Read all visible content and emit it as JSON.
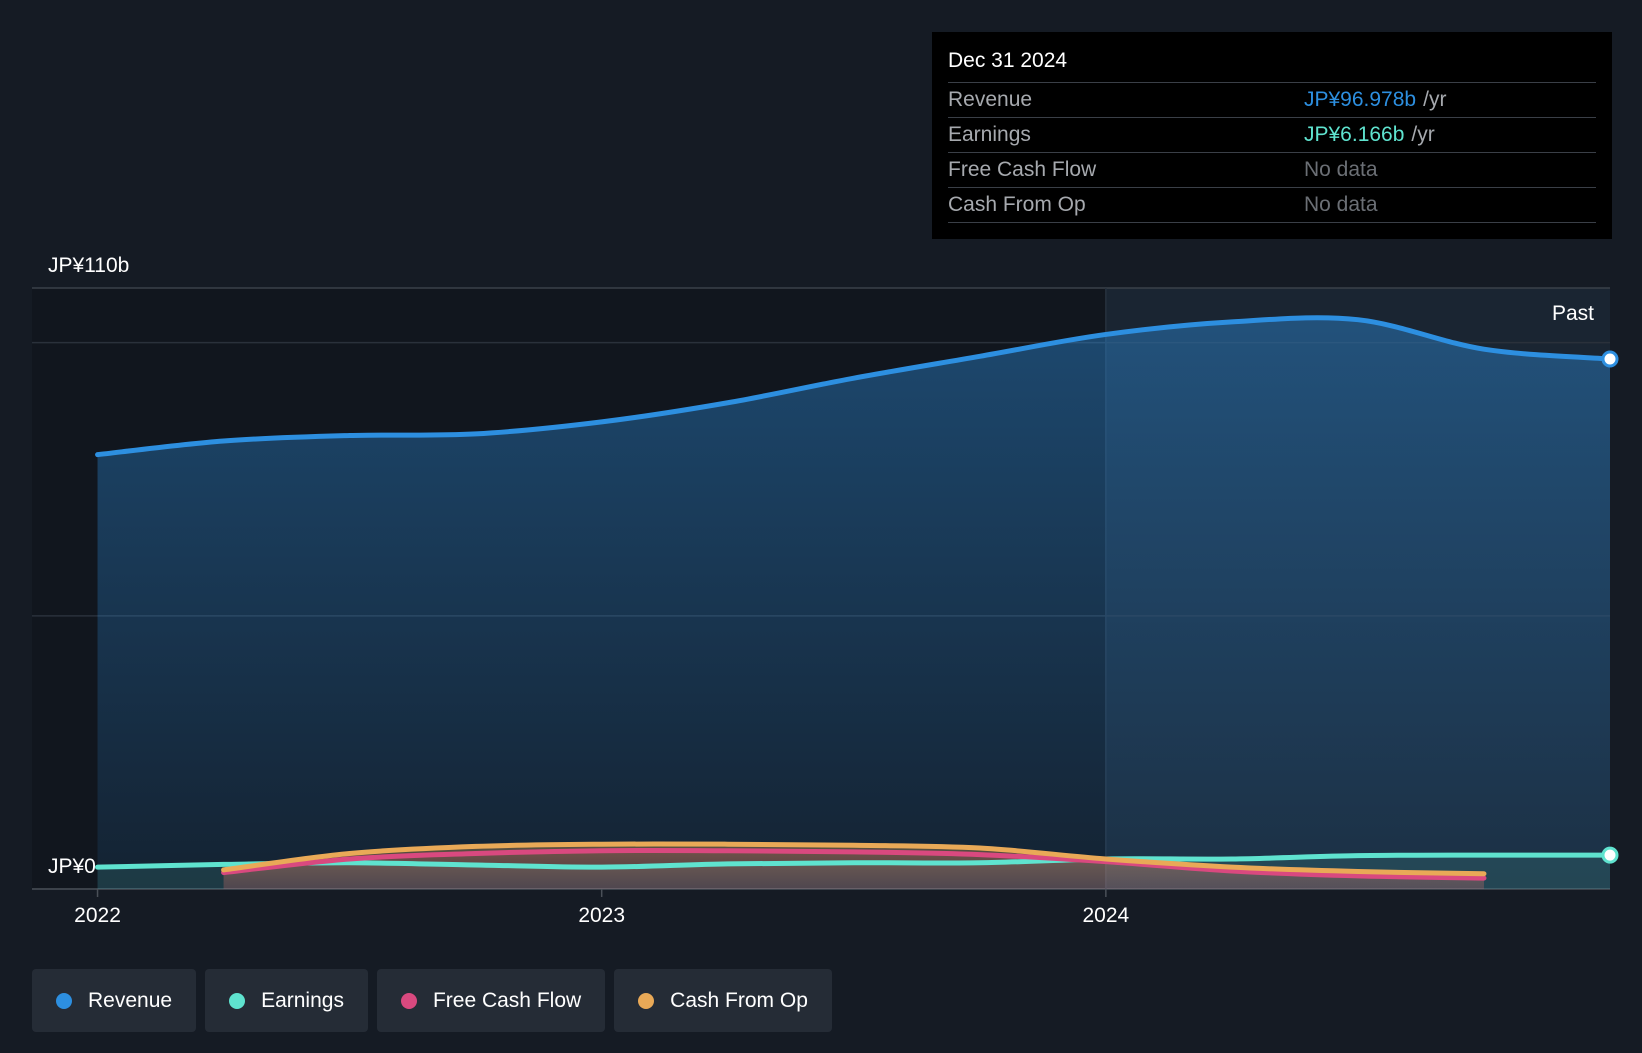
{
  "colors": {
    "background": "#151b24",
    "revenue": "#2d8fe0",
    "earnings": "#5fe3cf",
    "free_cash_flow": "#d9497f",
    "cash_from_op": "#e9a957",
    "grid": "#2a313b"
  },
  "tooltip": {
    "date": "Dec 31 2024",
    "rows": [
      {
        "label": "Revenue",
        "value": "JP¥96.978b",
        "unit": "/yr",
        "color": "#2d8fe0"
      },
      {
        "label": "Earnings",
        "value": "JP¥6.166b",
        "unit": "/yr",
        "color": "#5fe3cf"
      },
      {
        "label": "Free Cash Flow",
        "value": "No data",
        "unit": "",
        "color": ""
      },
      {
        "label": "Cash From Op",
        "value": "No data",
        "unit": "",
        "color": ""
      }
    ]
  },
  "legend": [
    {
      "label": "Revenue",
      "color": "#2d8fe0",
      "icon": "revenue-dot-icon"
    },
    {
      "label": "Earnings",
      "color": "#5fe3cf",
      "icon": "earnings-dot-icon"
    },
    {
      "label": "Free Cash Flow",
      "color": "#d9497f",
      "icon": "free-cash-flow-dot-icon"
    },
    {
      "label": "Cash From Op",
      "color": "#e9a957",
      "icon": "cash-from-op-dot-icon"
    }
  ],
  "chart_data": {
    "type": "line",
    "title": "",
    "xlabel": "",
    "ylabel": "",
    "ylim": [
      0,
      110
    ],
    "y_tick_labels": [
      {
        "value": 110,
        "label": "JP¥110b"
      },
      {
        "value": 0,
        "label": "JP¥0"
      }
    ],
    "x_ticks": [
      {
        "value": 2022.0,
        "label": "2022"
      },
      {
        "value": 2023.0,
        "label": "2023"
      },
      {
        "value": 2024.0,
        "label": "2024"
      }
    ],
    "xlim": [
      2021.87,
      2025.0
    ],
    "past_marker": {
      "x": 2024.0,
      "label": "Past"
    },
    "series": [
      {
        "name": "Revenue",
        "key": "revenue",
        "x": [
          2022.0,
          2022.25,
          2022.5,
          2022.75,
          2023.0,
          2023.25,
          2023.5,
          2023.75,
          2024.0,
          2024.25,
          2024.5,
          2024.75,
          2025.0
        ],
        "y": [
          79.5,
          82.0,
          83.0,
          83.3,
          85.5,
          89.0,
          93.5,
          97.5,
          101.5,
          103.8,
          104.2,
          98.8,
          97.0
        ]
      },
      {
        "name": "Earnings",
        "key": "earnings",
        "x": [
          2022.0,
          2022.25,
          2022.5,
          2022.75,
          2023.0,
          2023.25,
          2023.5,
          2023.75,
          2024.0,
          2024.25,
          2024.5,
          2024.75,
          2025.0
        ],
        "y": [
          4.0,
          4.5,
          4.8,
          4.4,
          4.0,
          4.6,
          4.8,
          4.8,
          5.5,
          5.5,
          6.1,
          6.2,
          6.2
        ]
      },
      {
        "name": "Free Cash Flow",
        "key": "free_cash_flow",
        "x": [
          2022.25,
          2022.5,
          2022.75,
          2023.0,
          2023.25,
          2023.5,
          2023.75,
          2024.0,
          2024.25,
          2024.5,
          2024.75
        ],
        "y": [
          3.0,
          5.5,
          6.5,
          7.0,
          7.0,
          6.8,
          6.3,
          5.0,
          3.3,
          2.4,
          2.0
        ]
      },
      {
        "name": "Cash From Op",
        "key": "cash_from_op",
        "x": [
          2022.25,
          2022.5,
          2022.75,
          2023.0,
          2023.25,
          2023.5,
          2023.75,
          2024.0,
          2024.25,
          2024.5,
          2024.75
        ],
        "y": [
          3.5,
          6.5,
          7.8,
          8.2,
          8.2,
          8.0,
          7.5,
          5.5,
          4.0,
          3.2,
          2.8
        ]
      }
    ]
  }
}
